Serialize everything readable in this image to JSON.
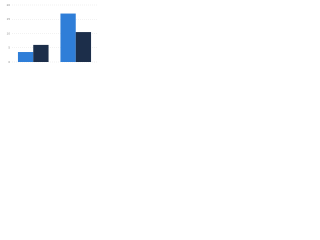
{
  "chart_data": {
    "type": "bar",
    "categories": [
      null,
      null
    ],
    "series": [
      {
        "color": "#2f7ed8",
        "values": [
          3.5,
          17
        ]
      },
      {
        "color": "#1c2e4a",
        "values": [
          6,
          10.5
        ]
      }
    ],
    "ylim": [
      0,
      20
    ],
    "yticks": [
      0,
      5,
      10,
      15,
      20
    ],
    "grid": true
  }
}
